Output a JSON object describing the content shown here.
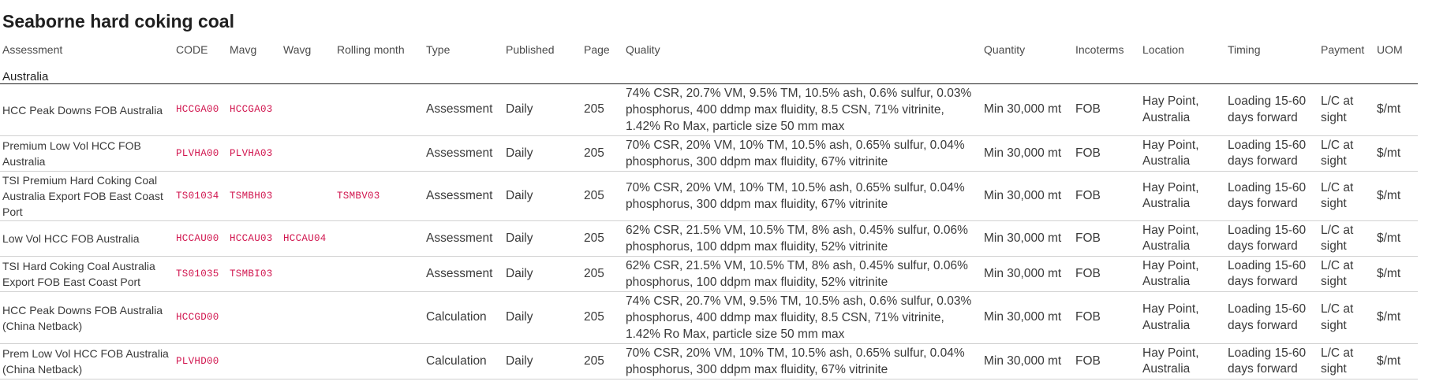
{
  "title": "Seaborne hard coking coal",
  "columns": {
    "assessment": "Assessment",
    "code": "CODE",
    "mavg": "Mavg",
    "wavg": "Wavg",
    "rolling_month": "Rolling month",
    "type": "Type",
    "published": "Published",
    "page": "Page",
    "quality": "Quality",
    "quantity": "Quantity",
    "incoterms": "Incoterms",
    "location": "Location",
    "timing": "Timing",
    "payment": "Payment",
    "uom": "UOM"
  },
  "region": "Australia",
  "rows": [
    {
      "assessment": "HCC Peak Downs FOB Australia",
      "code": "HCCGA00",
      "mavg": "HCCGA03",
      "wavg": "",
      "rolling_month": "",
      "type": "Assessment",
      "published": "Daily",
      "page": "205",
      "quality": "74% CSR, 20.7% VM, 9.5% TM, 10.5% ash, 0.6% sulfur, 0.03% phosphorus, 400 ddmp max fluidity, 8.5 CSN, 71% vitrinite, 1.42% Ro Max, particle size 50 mm max",
      "quantity": "Min 30,000 mt",
      "incoterms": "FOB",
      "location": "Hay Point, Australia",
      "timing": "Loading 15-60 days forward",
      "payment": "L/C at sight",
      "uom": "$/mt"
    },
    {
      "assessment": "Premium Low Vol HCC FOB Australia",
      "code": "PLVHA00",
      "mavg": "PLVHA03",
      "wavg": "",
      "rolling_month": "",
      "type": "Assessment",
      "published": "Daily",
      "page": "205",
      "quality": "70% CSR, 20% VM, 10% TM, 10.5% ash, 0.65% sulfur, 0.04% phosphorus, 300 ddpm max fluidity, 67% vitrinite",
      "quantity": "Min 30,000 mt",
      "incoterms": "FOB",
      "location": "Hay Point, Australia",
      "timing": "Loading 15-60 days forward",
      "payment": "L/C at sight",
      "uom": "$/mt"
    },
    {
      "assessment": "TSI Premium Hard Coking Coal Australia Export FOB East Coast Port",
      "code": "TS01034",
      "mavg": "TSMBH03",
      "wavg": "",
      "rolling_month": "TSMBV03",
      "type": "Assessment",
      "published": "Daily",
      "page": "205",
      "quality": "70% CSR, 20% VM, 10% TM, 10.5% ash, 0.65% sulfur, 0.04% phosphorus, 300 ddpm max fluidity, 67% vitrinite",
      "quantity": "Min 30,000 mt",
      "incoterms": "FOB",
      "location": "Hay Point, Australia",
      "timing": "Loading 15-60 days forward",
      "payment": "L/C at sight",
      "uom": "$/mt"
    },
    {
      "assessment": "Low Vol HCC FOB Australia",
      "code": "HCCAU00",
      "mavg": "HCCAU03",
      "wavg": "HCCAU04",
      "rolling_month": "",
      "type": "Assessment",
      "published": "Daily",
      "page": "205",
      "quality": "62% CSR, 21.5% VM, 10.5% TM, 8% ash, 0.45% sulfur, 0.06% phosphorus, 100 ddpm max fluidity, 52% vitrinite",
      "quantity": "Min 30,000 mt",
      "incoterms": "FOB",
      "location": "Hay Point, Australia",
      "timing": "Loading 15-60 days forward",
      "payment": "L/C at sight",
      "uom": "$/mt"
    },
    {
      "assessment": "TSI Hard Coking Coal Australia Export FOB East Coast Port",
      "code": "TS01035",
      "mavg": "TSMBI03",
      "wavg": "",
      "rolling_month": "",
      "type": "Assessment",
      "published": "Daily",
      "page": "205",
      "quality": "62% CSR, 21.5% VM, 10.5% TM, 8% ash, 0.45% sulfur, 0.06% phosphorus, 100 ddpm max fluidity, 52% vitrinite",
      "quantity": "Min 30,000 mt",
      "incoterms": "FOB",
      "location": "Hay Point, Australia",
      "timing": "Loading 15-60 days forward",
      "payment": "L/C at sight",
      "uom": "$/mt"
    },
    {
      "assessment": "HCC Peak Downs FOB Australia (China Netback)",
      "code": "HCCGD00",
      "mavg": "",
      "wavg": "",
      "rolling_month": "",
      "type": "Calculation",
      "published": "Daily",
      "page": "205",
      "quality": "74% CSR, 20.7% VM, 9.5% TM, 10.5% ash, 0.6% sulfur, 0.03% phosphorus, 400 ddmp max fluidity, 8.5 CSN, 71% vitrinite, 1.42% Ro Max, particle size 50 mm max",
      "quantity": "Min 30,000 mt",
      "incoterms": "FOB",
      "location": "Hay Point, Australia",
      "timing": "Loading 15-60 days forward",
      "payment": "L/C at sight",
      "uom": "$/mt"
    },
    {
      "assessment": "Prem Low Vol HCC FOB Australia (China Netback)",
      "code": "PLVHD00",
      "mavg": "",
      "wavg": "",
      "rolling_month": "",
      "type": "Calculation",
      "published": "Daily",
      "page": "205",
      "quality": "70% CSR, 20% VM, 10% TM, 10.5% ash, 0.65% sulfur, 0.04% phosphorus, 300 ddpm max fluidity, 67% vitrinite",
      "quantity": "Min 30,000 mt",
      "incoterms": "FOB",
      "location": "Hay Point, Australia",
      "timing": "Loading 15-60 days forward",
      "payment": "L/C at sight",
      "uom": "$/mt"
    }
  ]
}
